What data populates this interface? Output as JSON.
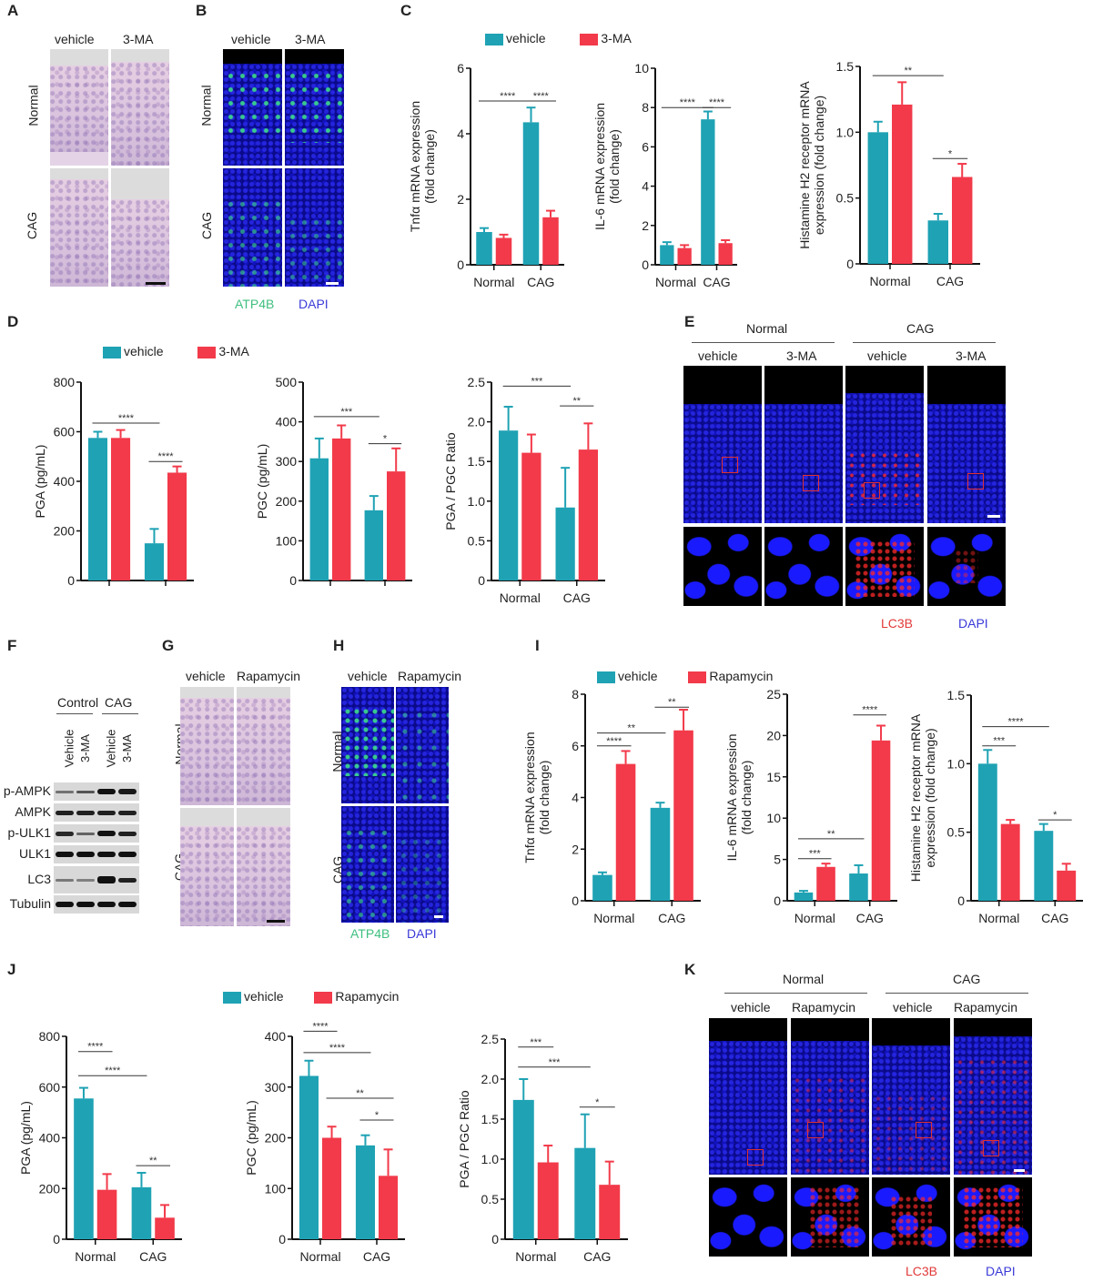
{
  "colors": {
    "vehicle": "#1fa2b4",
    "treatment": "#f23a4a",
    "lc3b_label": "#e23a3a",
    "dapi_label": "#3a3ad8",
    "atp4b_label": "#3fbf7f"
  },
  "panels": {
    "A": {
      "label": "A",
      "columns": [
        "vehicle",
        "3-MA"
      ],
      "rows": [
        "Normal",
        "CAG"
      ]
    },
    "B": {
      "label": "B",
      "columns": [
        "vehicle",
        "3-MA"
      ],
      "rows": [
        "Normal",
        "CAG"
      ],
      "stains": [
        "ATP4B",
        "DAPI"
      ]
    },
    "C": {
      "label": "C",
      "legend": [
        "vehicle",
        "3-MA"
      ]
    },
    "D": {
      "label": "D",
      "legend": [
        "vehicle",
        "3-MA"
      ]
    },
    "E": {
      "label": "E",
      "groups": [
        "Normal",
        "CAG"
      ],
      "columns": [
        "vehicle",
        "3-MA",
        "vehicle",
        "3-MA"
      ],
      "stains": [
        "LC3B",
        "DAPI"
      ]
    },
    "F": {
      "label": "F",
      "groups": [
        "Control",
        "CAG"
      ],
      "lanes": [
        "Vehicle",
        "3-MA",
        "Vehicle",
        "3-MA"
      ],
      "proteins": [
        "p-AMPK",
        "AMPK",
        "p-ULK1",
        "ULK1",
        "LC3",
        "Tubulin"
      ]
    },
    "G": {
      "label": "G",
      "columns": [
        "vehicle",
        "Rapamycin"
      ],
      "rows": [
        "Normal",
        "CAG"
      ]
    },
    "H": {
      "label": "H",
      "columns": [
        "vehicle",
        "Rapamycin"
      ],
      "rows": [
        "Normal",
        "CAG"
      ],
      "stains": [
        "ATP4B",
        "DAPI"
      ]
    },
    "I": {
      "label": "I",
      "legend": [
        "vehicle",
        "Rapamycin"
      ]
    },
    "J": {
      "label": "J",
      "legend": [
        "vehicle",
        "Rapamycin"
      ]
    },
    "K": {
      "label": "K",
      "groups": [
        "Normal",
        "CAG"
      ],
      "columns": [
        "vehicle",
        "Rapamycin",
        "vehicle",
        "Rapamycin"
      ],
      "stains": [
        "LC3B",
        "DAPI"
      ]
    }
  },
  "chart_data": [
    {
      "id": "C1",
      "type": "bar",
      "ylabel": "Tnfα mRNA expression (fold change)",
      "ylim": [
        0,
        6
      ],
      "yticks": [
        0,
        2,
        4,
        6
      ],
      "ytick_labels": [
        "0",
        "2",
        "4",
        "6"
      ],
      "categories": [
        "Normal",
        "CAG"
      ],
      "show_xlabels": true,
      "series": [
        {
          "name": "vehicle",
          "values": [
            1.0,
            4.35
          ],
          "errors": [
            0.12,
            0.45
          ]
        },
        {
          "name": "3-MA",
          "values": [
            0.82,
            1.45
          ],
          "errors": [
            0.1,
            0.2
          ]
        }
      ],
      "sig": [
        {
          "from": [
            0,
            0
          ],
          "to": [
            1,
            0
          ],
          "label": "****",
          "y": 5.0
        },
        {
          "from": [
            1,
            0
          ],
          "to": [
            1,
            1
          ],
          "label": "****",
          "y": 5.0
        }
      ]
    },
    {
      "id": "C2",
      "type": "bar",
      "ylabel": "IL-6 mRNA expression (fold change)",
      "ylim": [
        0,
        10
      ],
      "yticks": [
        0,
        2,
        4,
        6,
        8,
        10
      ],
      "ytick_labels": [
        "0",
        "2",
        "4",
        "6",
        "8",
        "10"
      ],
      "categories": [
        "Normal",
        "CAG"
      ],
      "show_xlabels": true,
      "series": [
        {
          "name": "vehicle",
          "values": [
            1.0,
            7.4
          ],
          "errors": [
            0.15,
            0.4
          ]
        },
        {
          "name": "3-MA",
          "values": [
            0.85,
            1.1
          ],
          "errors": [
            0.15,
            0.15
          ]
        }
      ],
      "sig": [
        {
          "from": [
            0,
            0
          ],
          "to": [
            1,
            0
          ],
          "label": "****",
          "y": 8.0
        },
        {
          "from": [
            1,
            0
          ],
          "to": [
            1,
            1
          ],
          "label": "****",
          "y": 8.0
        }
      ]
    },
    {
      "id": "C3",
      "type": "bar",
      "ylabel": "Histamine H2 receptor mRNA expression (fold change)",
      "ylim": [
        0,
        1.5
      ],
      "yticks": [
        0,
        0.5,
        1.0,
        1.5
      ],
      "ytick_labels": [
        "0",
        "0.5",
        "1.0",
        "1.5"
      ],
      "categories": [
        "Normal",
        "CAG"
      ],
      "show_xlabels": true,
      "series": [
        {
          "name": "vehicle",
          "values": [
            1.0,
            0.33
          ],
          "errors": [
            0.08,
            0.05
          ]
        },
        {
          "name": "3-MA",
          "values": [
            1.21,
            0.66
          ],
          "errors": [
            0.17,
            0.1
          ]
        }
      ],
      "sig": [
        {
          "from": [
            0,
            0
          ],
          "to": [
            1,
            0
          ],
          "label": "**",
          "y": 1.43
        },
        {
          "from": [
            1,
            0
          ],
          "to": [
            1,
            1
          ],
          "label": "*",
          "y": 0.8
        }
      ]
    },
    {
      "id": "D1",
      "type": "bar",
      "ylabel": "PGA (pg/mL)",
      "ylim": [
        0,
        800
      ],
      "yticks": [
        0,
        200,
        400,
        600,
        800
      ],
      "ytick_labels": [
        "0",
        "200",
        "400",
        "600",
        "800"
      ],
      "categories": [
        "Normal",
        "CAG"
      ],
      "show_xlabels": false,
      "series": [
        {
          "name": "vehicle",
          "values": [
            575,
            150
          ],
          "errors": [
            25,
            58
          ]
        },
        {
          "name": "3-MA",
          "values": [
            575,
            435
          ],
          "errors": [
            32,
            25
          ]
        }
      ],
      "sig": [
        {
          "from": [
            0,
            0
          ],
          "to": [
            1,
            0
          ],
          "label": "****",
          "y": 635
        },
        {
          "from": [
            1,
            0
          ],
          "to": [
            1,
            1
          ],
          "label": "****",
          "y": 480
        }
      ]
    },
    {
      "id": "D2",
      "type": "bar",
      "ylabel": "PGC (pg/mL)",
      "ylim": [
        0,
        500
      ],
      "yticks": [
        0,
        100,
        200,
        300,
        400,
        500
      ],
      "ytick_labels": [
        "0",
        "100",
        "200",
        "300",
        "400",
        "500"
      ],
      "categories": [
        "Normal",
        "CAG"
      ],
      "show_xlabels": false,
      "series": [
        {
          "name": "vehicle",
          "values": [
            308,
            177
          ],
          "errors": [
            50,
            36
          ]
        },
        {
          "name": "3-MA",
          "values": [
            358,
            275
          ],
          "errors": [
            33,
            58
          ]
        }
      ],
      "sig": [
        {
          "from": [
            0,
            0
          ],
          "to": [
            1,
            0
          ],
          "label": "***",
          "y": 413
        },
        {
          "from": [
            1,
            0
          ],
          "to": [
            1,
            1
          ],
          "label": "*",
          "y": 345
        }
      ]
    },
    {
      "id": "D3",
      "type": "bar",
      "ylabel": "PGA / PGC Ratio",
      "ylim": [
        0,
        2.5
      ],
      "yticks": [
        0,
        0.5,
        1.0,
        1.5,
        2.0,
        2.5
      ],
      "ytick_labels": [
        "0",
        "0.5",
        "1.0",
        "1.5",
        "2.0",
        "2.5"
      ],
      "categories": [
        "Normal",
        "CAG"
      ],
      "show_xlabels": true,
      "series": [
        {
          "name": "vehicle",
          "values": [
            1.89,
            0.92
          ],
          "errors": [
            0.3,
            0.5
          ]
        },
        {
          "name": "3-MA",
          "values": [
            1.61,
            1.65
          ],
          "errors": [
            0.23,
            0.33
          ]
        }
      ],
      "sig": [
        {
          "from": [
            0,
            0
          ],
          "to": [
            1,
            0
          ],
          "label": "***",
          "y": 2.45
        },
        {
          "from": [
            1,
            0
          ],
          "to": [
            1,
            1
          ],
          "label": "**",
          "y": 2.2
        }
      ]
    },
    {
      "id": "I1",
      "type": "bar",
      "ylabel": "Tnfα mRNA expression (fold change)",
      "ylim": [
        0,
        8
      ],
      "yticks": [
        0,
        2,
        4,
        6,
        8
      ],
      "ytick_labels": [
        "0",
        "2",
        "4",
        "6",
        "8"
      ],
      "categories": [
        "Normal",
        "CAG"
      ],
      "show_xlabels": true,
      "series": [
        {
          "name": "vehicle",
          "values": [
            1.0,
            3.6
          ],
          "errors": [
            0.1,
            0.2
          ]
        },
        {
          "name": "Rapamycin",
          "values": [
            5.3,
            6.6
          ],
          "errors": [
            0.5,
            0.8
          ]
        }
      ],
      "sig": [
        {
          "from": [
            0,
            0
          ],
          "to": [
            0,
            1
          ],
          "label": "****",
          "y": 6.0
        },
        {
          "from": [
            0,
            0
          ],
          "to": [
            1,
            0
          ],
          "label": "**",
          "y": 6.5
        },
        {
          "from": [
            1,
            0
          ],
          "to": [
            1,
            1
          ],
          "label": "**",
          "y": 7.5
        }
      ]
    },
    {
      "id": "I2",
      "type": "bar",
      "ylabel": "IL-6 mRNA expression (fold change)",
      "ylim": [
        0,
        25
      ],
      "yticks": [
        0,
        5,
        10,
        15,
        20,
        25
      ],
      "ytick_labels": [
        "0",
        "5",
        "10",
        "15",
        "20",
        "25"
      ],
      "categories": [
        "Normal",
        "CAG"
      ],
      "show_xlabels": true,
      "series": [
        {
          "name": "vehicle",
          "values": [
            1.0,
            3.3
          ],
          "errors": [
            0.2,
            1.0
          ]
        },
        {
          "name": "Rapamycin",
          "values": [
            4.1,
            19.4
          ],
          "errors": [
            0.4,
            1.8
          ]
        }
      ],
      "sig": [
        {
          "from": [
            0,
            0
          ],
          "to": [
            0,
            1
          ],
          "label": "***",
          "y": 5.1
        },
        {
          "from": [
            0,
            0
          ],
          "to": [
            1,
            0
          ],
          "label": "**",
          "y": 7.5
        },
        {
          "from": [
            1,
            0
          ],
          "to": [
            1,
            1
          ],
          "label": "****",
          "y": 22.5
        }
      ]
    },
    {
      "id": "I3",
      "type": "bar",
      "ylabel": "Histamine H2 receptor mRNA expression (fold change)",
      "ylim": [
        0,
        1.5
      ],
      "yticks": [
        0,
        0.5,
        1.0,
        1.5
      ],
      "ytick_labels": [
        "0",
        "0.5",
        "1.0",
        "1.5"
      ],
      "categories": [
        "Normal",
        "CAG"
      ],
      "show_xlabels": true,
      "series": [
        {
          "name": "vehicle",
          "values": [
            1.0,
            0.51
          ],
          "errors": [
            0.1,
            0.05
          ]
        },
        {
          "name": "Rapamycin",
          "values": [
            0.56,
            0.22
          ],
          "errors": [
            0.03,
            0.05
          ]
        }
      ],
      "sig": [
        {
          "from": [
            0,
            0
          ],
          "to": [
            0,
            1
          ],
          "label": "***",
          "y": 1.13
        },
        {
          "from": [
            0,
            0
          ],
          "to": [
            1,
            0
          ],
          "label": "****",
          "y": 1.27
        },
        {
          "from": [
            1,
            0
          ],
          "to": [
            1,
            1
          ],
          "label": "*",
          "y": 0.59
        }
      ]
    },
    {
      "id": "J1",
      "type": "bar",
      "ylabel": "PGA (pg/mL)",
      "ylim": [
        0,
        800
      ],
      "yticks": [
        0,
        200,
        400,
        600,
        800
      ],
      "ytick_labels": [
        "0",
        "200",
        "400",
        "600",
        "800"
      ],
      "categories": [
        "Normal",
        "CAG"
      ],
      "show_xlabels": true,
      "series": [
        {
          "name": "vehicle",
          "values": [
            555,
            205
          ],
          "errors": [
            42,
            57
          ]
        },
        {
          "name": "Rapamycin",
          "values": [
            195,
            85
          ],
          "errors": [
            62,
            50
          ]
        }
      ],
      "sig": [
        {
          "from": [
            0,
            0
          ],
          "to": [
            0,
            1
          ],
          "label": "****",
          "y": 740
        },
        {
          "from": [
            0,
            0
          ],
          "to": [
            1,
            0
          ],
          "label": "****",
          "y": 645
        },
        {
          "from": [
            1,
            0
          ],
          "to": [
            1,
            1
          ],
          "label": "**",
          "y": 290
        }
      ]
    },
    {
      "id": "J2",
      "type": "bar",
      "ylabel": "PGC (pg/mL)",
      "ylim": [
        0,
        400
      ],
      "yticks": [
        0,
        100,
        200,
        300,
        400
      ],
      "ytick_labels": [
        "0",
        "100",
        "200",
        "300",
        "400"
      ],
      "categories": [
        "Normal",
        "CAG"
      ],
      "show_xlabels": true,
      "series": [
        {
          "name": "vehicle",
          "values": [
            322,
            185
          ],
          "errors": [
            30,
            20
          ]
        },
        {
          "name": "Rapamycin",
          "values": [
            200,
            125
          ],
          "errors": [
            22,
            52
          ]
        }
      ],
      "sig": [
        {
          "from": [
            0,
            0
          ],
          "to": [
            0,
            1
          ],
          "label": "****",
          "y": 410
        },
        {
          "from": [
            0,
            0
          ],
          "to": [
            1,
            0
          ],
          "label": "****",
          "y": 368
        },
        {
          "from": [
            0,
            1
          ],
          "to": [
            1,
            1
          ],
          "label": "**",
          "y": 278
        },
        {
          "from": [
            1,
            0
          ],
          "to": [
            1,
            1
          ],
          "label": "*",
          "y": 235
        }
      ]
    },
    {
      "id": "J3",
      "type": "bar",
      "ylabel": "PGA / PGC Ratio",
      "ylim": [
        0,
        2.5
      ],
      "yticks": [
        0,
        0.5,
        1.0,
        1.5,
        2.0,
        2.5
      ],
      "ytick_labels": [
        "0",
        "0.5",
        "1.0",
        "1.5",
        "2.0",
        "2.5"
      ],
      "categories": [
        "Normal",
        "CAG"
      ],
      "show_xlabels": true,
      "series": [
        {
          "name": "vehicle",
          "values": [
            1.74,
            1.14
          ],
          "errors": [
            0.26,
            0.42
          ]
        },
        {
          "name": "Rapamycin",
          "values": [
            0.96,
            0.68
          ],
          "errors": [
            0.21,
            0.29
          ]
        }
      ],
      "sig": [
        {
          "from": [
            0,
            0
          ],
          "to": [
            0,
            1
          ],
          "label": "***",
          "y": 2.4
        },
        {
          "from": [
            0,
            0
          ],
          "to": [
            1,
            0
          ],
          "label": "***",
          "y": 2.15
        },
        {
          "from": [
            1,
            0
          ],
          "to": [
            1,
            1
          ],
          "label": "*",
          "y": 1.65
        }
      ]
    }
  ]
}
